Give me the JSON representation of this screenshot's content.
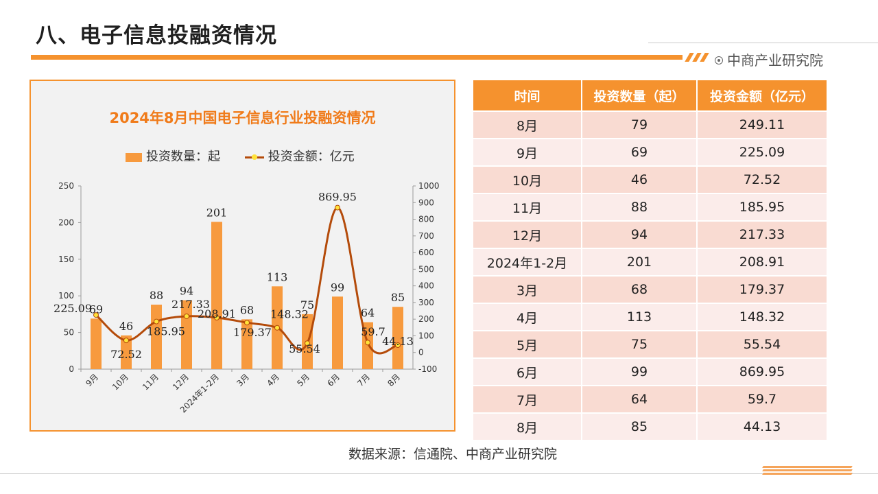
{
  "page": {
    "title": "八、电子信息投融资情况",
    "brand": "中商产业研究院"
  },
  "source": "数据来源：信通院、中商产业研究院",
  "table": {
    "headers": [
      "时间",
      "投资数量（起）",
      "投资金额（亿元）"
    ],
    "rows": [
      [
        "8月",
        "79",
        "249.11"
      ],
      [
        "9月",
        "69",
        "225.09"
      ],
      [
        "10月",
        "46",
        "72.52"
      ],
      [
        "11月",
        "88",
        "185.95"
      ],
      [
        "12月",
        "94",
        "217.33"
      ],
      [
        "2024年1-2月",
        "201",
        "208.91"
      ],
      [
        "3月",
        "68",
        "179.37"
      ],
      [
        "4月",
        "113",
        "148.32"
      ],
      [
        "5月",
        "75",
        "55.54"
      ],
      [
        "6月",
        "99",
        "869.95"
      ],
      [
        "7月",
        "64",
        "59.7"
      ],
      [
        "8月",
        "85",
        "44.13"
      ]
    ]
  },
  "colors": {
    "accent": "#f5922e",
    "bar": "#f79a3e",
    "line": "#b44b0a",
    "marker": "#ffe23a"
  },
  "chart_data": {
    "type": "bar",
    "title": "2024年8月中国电子信息行业投融资情况",
    "categories": [
      "9月",
      "10月",
      "11月",
      "12月",
      "2024年1-2月",
      "3月",
      "4月",
      "5月",
      "6月",
      "7月",
      "8月"
    ],
    "series": [
      {
        "name": "投资数量：起",
        "type": "bar",
        "axis": "left",
        "values": [
          69,
          46,
          88,
          94,
          201,
          68,
          113,
          75,
          99,
          64,
          85
        ],
        "labels": [
          "69",
          "46",
          "88",
          "94",
          "201",
          "68",
          "113",
          "75",
          "99",
          "64",
          "85"
        ]
      },
      {
        "name": "投资金额：亿元",
        "type": "line",
        "axis": "right",
        "values": [
          225.09,
          72.52,
          185.95,
          217.33,
          208.91,
          179.37,
          148.32,
          55.54,
          869.95,
          59.7,
          44.13
        ],
        "labels": [
          "225.09",
          "72.52",
          "185.95",
          "217.33",
          "208.91",
          "179.37",
          "148.32",
          "55.54",
          "869.95",
          "59.7",
          "44.13"
        ]
      }
    ],
    "y_left": {
      "min": 0,
      "max": 250,
      "ticks": [
        "0",
        "50",
        "100",
        "150",
        "200",
        "250"
      ]
    },
    "y_right": {
      "min": -100,
      "max": 1000,
      "ticks": [
        "-100",
        "0",
        "100",
        "200",
        "300",
        "400",
        "500",
        "600",
        "700",
        "800",
        "900",
        "1000"
      ]
    },
    "legend_position": "top",
    "grid": false
  }
}
